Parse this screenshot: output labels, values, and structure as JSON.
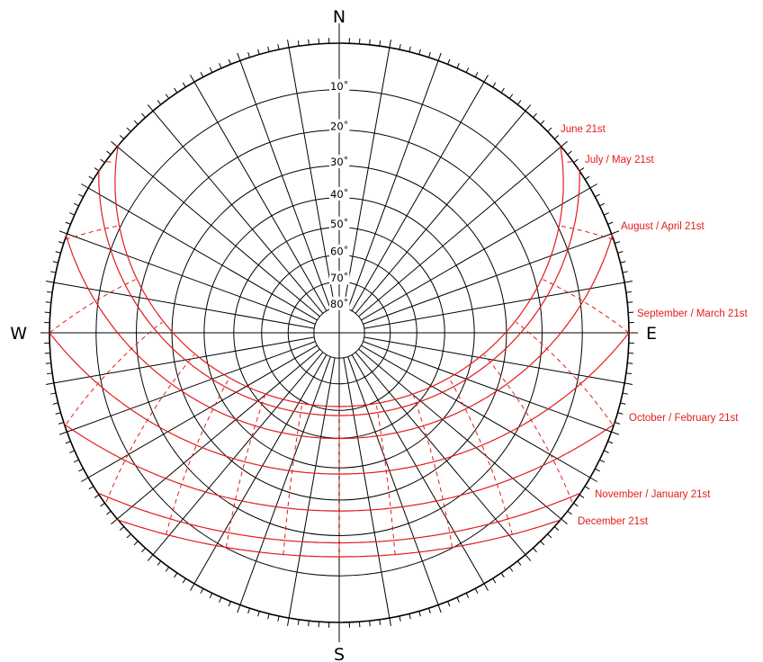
{
  "compass": {
    "north": "N",
    "south": "S",
    "east": "E",
    "west": "W"
  },
  "altitude_labels": [
    "10˚",
    "20˚",
    "30˚",
    "40˚",
    "50˚",
    "60˚",
    "70˚",
    "80˚"
  ],
  "date_lines": [
    {
      "label": "June 21st"
    },
    {
      "label": "July / May 21st"
    },
    {
      "label": "August / April 21st"
    },
    {
      "label": "September / March 21st"
    },
    {
      "label": "October / February 21st"
    },
    {
      "label": "November / January 21st"
    },
    {
      "label": "December 21st"
    }
  ],
  "colors": {
    "sun_path": "#e31b1b",
    "grid": "#000000",
    "background": "#ffffff"
  }
}
